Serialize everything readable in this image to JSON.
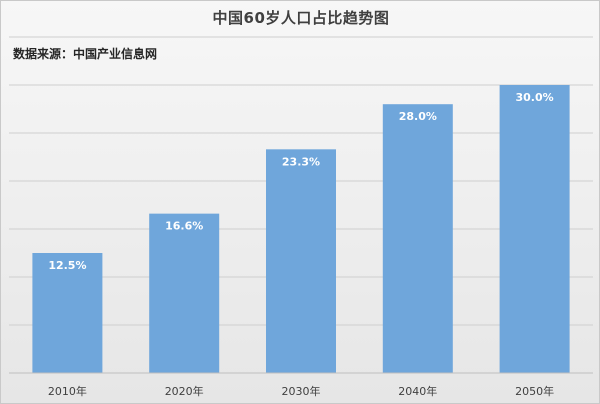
{
  "chart_data": {
    "type": "bar",
    "title": "中国60岁人口占比趋势图",
    "source": "数据来源：中国产业信息网",
    "categories": [
      "2010年",
      "2020年",
      "2030年",
      "2040年",
      "2050年"
    ],
    "values": [
      12.5,
      16.6,
      23.3,
      28.0,
      30.0
    ],
    "value_labels": [
      "12.5%",
      "16.6%",
      "23.3%",
      "28.0%",
      "30.0%"
    ],
    "ylim": [
      0,
      30
    ],
    "grid": true,
    "bar_color": "#6fa6db",
    "label_color": "#ffffff"
  }
}
